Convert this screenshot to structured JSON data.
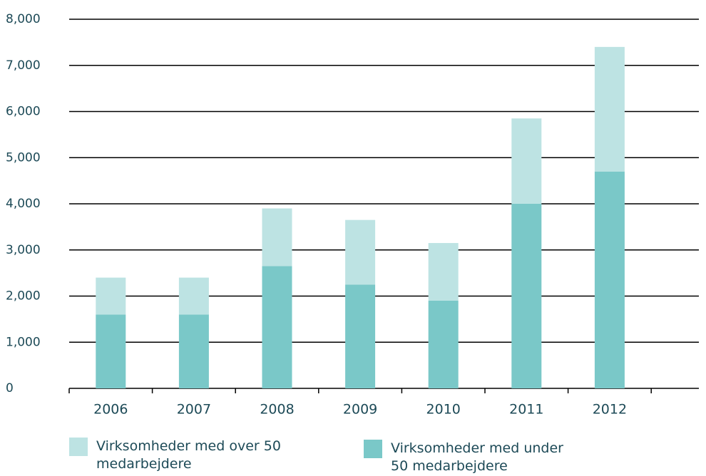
{
  "chart_data": {
    "type": "stacked_bar",
    "categories": [
      "2006",
      "2007",
      "2008",
      "2009",
      "2010",
      "2011",
      "2012"
    ],
    "series": [
      {
        "name": "Virksomheder med under 50 medarbejdere",
        "color": "#7ac8c8",
        "values": [
          1600,
          1600,
          2650,
          2250,
          1900,
          4000,
          4700
        ]
      },
      {
        "name": "Virksomheder med over 50 medarbejdere",
        "color": "#bde3e3",
        "values": [
          800,
          800,
          1250,
          1400,
          1250,
          1850,
          2700
        ]
      }
    ],
    "ylim": [
      0,
      8000
    ],
    "yticks": [
      0,
      {
        "value": 1000,
        "label": "1,000"
      },
      {
        "value": 2000,
        "label": "2,000"
      },
      {
        "value": 3000,
        "label": "3,000"
      },
      {
        "value": 4000,
        "label": "4,000"
      },
      {
        "value": 5000,
        "label": "5,000"
      },
      {
        "value": 6000,
        "label": "6,000"
      },
      {
        "value": 7000,
        "label": "7,000"
      },
      {
        "value": 8000,
        "label": "8,000"
      }
    ],
    "grid": true
  }
}
